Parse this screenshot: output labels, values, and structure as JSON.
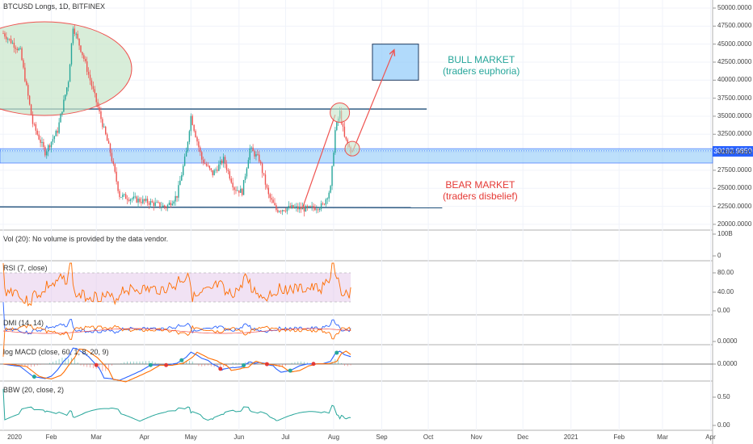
{
  "main_title": "BTCUSD Longs, 1D, BITFINEX",
  "vol_label": "Vol (20): No volume is provided by the data vendor.",
  "rsi_label": "RSI (7, close)",
  "dmi_label": "DMI (14, 14)",
  "macd_label": "log MACD (close, 60, 1, 8, 20, 9)",
  "bbw_label": "BBW (20, close, 2)",
  "annotations": {
    "bull_line1": "BULL MARKET",
    "bull_line2": "(traders euphoria)",
    "bear_line1": "BEAR MARKET",
    "bear_line2": "(traders disbelief)"
  },
  "last_price": "30192.9850",
  "colors": {
    "up": "#26a69a",
    "down": "#ef5350",
    "bull_text": "#26a69a",
    "bear_text": "#e53935",
    "zone": "#90caf9",
    "ellipse_fill": "#c8e6c9",
    "ellipse_stroke": "#ef5350",
    "rsi": "#ff6d00",
    "rsi_band": "#e1bee7",
    "dmi_plus": "#2962ff",
    "dmi_minus": "#ff6d00",
    "dmi_adx": "#ef5350",
    "macd": "#2962ff",
    "signal": "#ff6d00",
    "bbw": "#26a69a",
    "price_tag": "#2962ff"
  },
  "chart_data": {
    "type": "candlestick",
    "title": "BTCUSD Longs, 1D, BITFINEX",
    "x_axis_ticks": [
      "2020",
      "Feb",
      "Mar",
      "Apr",
      "May",
      "Jun",
      "Jul",
      "Aug",
      "Sep",
      "Oct",
      "Nov",
      "Dec",
      "2021",
      "Feb",
      "Mar",
      "Apr"
    ],
    "price_axis_ticks": [
      "50000.0000",
      "47500.0000",
      "45000.0000",
      "42500.0000",
      "40000.0000",
      "37500.0000",
      "35000.0000",
      "32500.0000",
      "30000.0000",
      "27500.0000",
      "25000.0000",
      "22500.0000",
      "20000.0000"
    ],
    "price_ylim": [
      20000,
      50000
    ],
    "last_price": 30192.985,
    "closes_approx": [
      {
        "date": "2020-01-01",
        "value": 46500
      },
      {
        "date": "2020-01-12",
        "value": 44000
      },
      {
        "date": "2020-01-20",
        "value": 34000
      },
      {
        "date": "2020-01-28",
        "value": 30000
      },
      {
        "date": "2020-02-05",
        "value": 33000
      },
      {
        "date": "2020-02-12",
        "value": 40000
      },
      {
        "date": "2020-02-15",
        "value": 47500
      },
      {
        "date": "2020-02-22",
        "value": 43000
      },
      {
        "date": "2020-03-01",
        "value": 37000
      },
      {
        "date": "2020-03-10",
        "value": 30000
      },
      {
        "date": "2020-03-16",
        "value": 24000
      },
      {
        "date": "2020-03-25",
        "value": 23500
      },
      {
        "date": "2020-04-05",
        "value": 23000
      },
      {
        "date": "2020-04-15",
        "value": 22400
      },
      {
        "date": "2020-04-22",
        "value": 24000
      },
      {
        "date": "2020-04-28",
        "value": 30000
      },
      {
        "date": "2020-05-01",
        "value": 35000
      },
      {
        "date": "2020-05-08",
        "value": 29000
      },
      {
        "date": "2020-05-15",
        "value": 27000
      },
      {
        "date": "2020-05-22",
        "value": 29000
      },
      {
        "date": "2020-05-29",
        "value": 25000
      },
      {
        "date": "2020-06-03",
        "value": 24500
      },
      {
        "date": "2020-06-08",
        "value": 30500
      },
      {
        "date": "2020-06-14",
        "value": 29000
      },
      {
        "date": "2020-06-20",
        "value": 24000
      },
      {
        "date": "2020-06-25",
        "value": 22000
      },
      {
        "date": "2020-07-05",
        "value": 22300
      },
      {
        "date": "2020-07-15",
        "value": 22100
      },
      {
        "date": "2020-07-25",
        "value": 22600
      },
      {
        "date": "2020-07-30",
        "value": 25000
      },
      {
        "date": "2020-08-02",
        "value": 33000
      },
      {
        "date": "2020-08-05",
        "value": 35500
      },
      {
        "date": "2020-08-08",
        "value": 32000
      },
      {
        "date": "2020-08-12",
        "value": 30200
      }
    ],
    "levels": {
      "resistance": 36000,
      "zone_low": 28500,
      "zone_high": 30500,
      "support": 22300
    },
    "rsi": {
      "levels": [
        80,
        20
      ],
      "ticks": [
        "80.00",
        "40.00",
        "0.00"
      ]
    },
    "dmi": {
      "ticks": []
    },
    "macd": {
      "ticks": [
        "0.0000",
        "0.0000"
      ]
    },
    "bbw": {
      "ticks": [
        "0.50",
        "0.00"
      ]
    },
    "vol": {
      "ticks": [
        "100B",
        "0"
      ]
    }
  }
}
